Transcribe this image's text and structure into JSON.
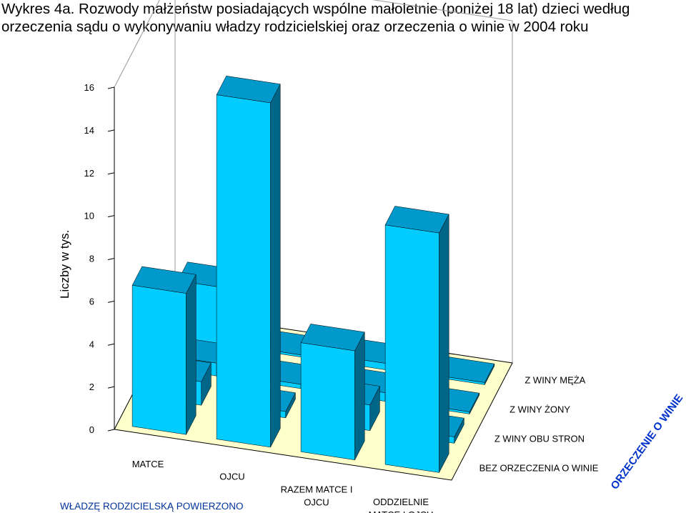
{
  "chart_data": {
    "type": "bar",
    "title": "Wykres 4a. Rozwody małżeństw posiadających wspólne małoletnie (poniżej 18 lat) dzieci według orzeczenia sądu o wykonywaniu władzy rodzicielskiej oraz orzeczenia o winie w 2004 roku",
    "ylabel": "Liczby w tys.",
    "ylim": [
      0,
      16
    ],
    "yticks": [
      0,
      2,
      4,
      6,
      8,
      10,
      12,
      14,
      16
    ],
    "x_axis_title": "WŁADZĘ RODZICIELSKĄ POWIERZONO",
    "z_axis_title": "ORZECZENIE O WINIE",
    "categories": [
      "MATCE",
      "OJCU",
      "RAZEM MATCE I OJCU",
      "ODDZIELNIE MATCE I OJCU"
    ],
    "category_lines": [
      [
        "MATCE"
      ],
      [
        "OJCU"
      ],
      [
        "RAZEM MATCE I",
        "OJCU"
      ],
      [
        "ODDZIELNIE",
        "MATCE I OJCU"
      ]
    ],
    "series": [
      {
        "name": "BEZ ORZECZENIA O WINIE",
        "values": [
          6.6,
          16.1,
          5.1,
          11.2
        ]
      },
      {
        "name": "Z WINY OBU STRON",
        "values": [
          1.1,
          0.3,
          1.2,
          0.3
        ]
      },
      {
        "name": "Z WINY ŻONY",
        "values": [
          0.6,
          0.2,
          0.4,
          0.1
        ]
      },
      {
        "name": "Z WINY MĘŻA",
        "values": [
          2.7,
          0.1,
          0.3,
          0.1
        ]
      }
    ],
    "colors": {
      "front": "#00ccff",
      "top": "#0099cc",
      "side": "#006688",
      "floor": "#ffffcc",
      "caption": "#003399"
    },
    "grid": false
  }
}
